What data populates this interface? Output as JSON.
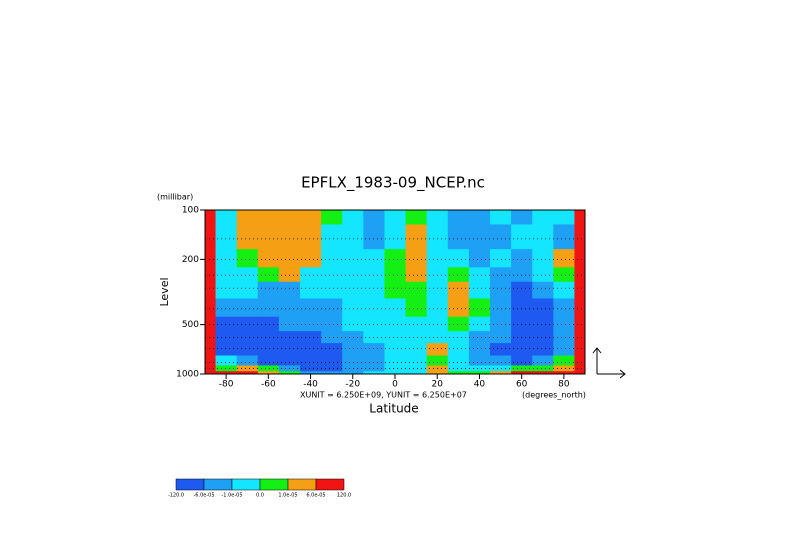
{
  "chart_data": {
    "type": "contour",
    "title": "EPFLX_1983-09_NCEP.nc",
    "y_unit": "(millibar)",
    "y_label": "Level",
    "x_label": "Latitude",
    "vector_scale": "XUNIT = 6.250E+09, YUNIT = 6.250E+07",
    "x_unit": "(degrees_north)",
    "xlim": [
      -90,
      90
    ],
    "xticks": [
      -80,
      -60,
      -40,
      -20,
      0,
      20,
      40,
      60,
      80
    ],
    "ylim": [
      1000,
      100
    ],
    "ylog": true,
    "yticks": [
      100,
      200,
      500,
      1000
    ],
    "x": [
      -90,
      -80,
      -70,
      -60,
      -50,
      -40,
      -30,
      -20,
      -10,
      0,
      10,
      20,
      30,
      40,
      50,
      60,
      70,
      80,
      90
    ],
    "levels": [
      100,
      150,
      200,
      250,
      300,
      400,
      500,
      600,
      700,
      850,
      925,
      1000
    ],
    "z": [
      [
        8e-05,
        -5e-06,
        3e-05,
        3e-05,
        3e-05,
        3e-05,
        5e-06,
        -5e-06,
        -3e-05,
        -5e-06,
        5e-06,
        -5e-06,
        -3e-05,
        -3e-05,
        -5e-06,
        -3e-05,
        -5e-06,
        -5e-06,
        8e-05
      ],
      [
        8e-05,
        -5e-06,
        3e-05,
        3e-05,
        3e-05,
        3e-05,
        -5e-06,
        -5e-06,
        -3e-05,
        -5e-06,
        3e-05,
        -5e-06,
        -3e-05,
        -3e-05,
        -3e-05,
        -5e-06,
        -5e-06,
        -3e-05,
        8e-05
      ],
      [
        8e-05,
        -5e-06,
        5e-06,
        3e-05,
        3e-05,
        3e-05,
        -5e-06,
        -5e-06,
        -5e-06,
        5e-06,
        3e-05,
        -5e-06,
        -5e-06,
        -3e-05,
        -5e-06,
        -3e-05,
        -5e-06,
        3e-05,
        8e-05
      ],
      [
        8e-05,
        -5e-06,
        -5e-06,
        5e-06,
        3e-05,
        -5e-06,
        -5e-06,
        -5e-06,
        -5e-06,
        5e-06,
        3e-05,
        -5e-06,
        5e-06,
        -5e-06,
        -3e-05,
        -3e-05,
        -5e-06,
        5e-06,
        8e-05
      ],
      [
        8e-05,
        -5e-06,
        -5e-06,
        -3e-05,
        -3e-05,
        -5e-06,
        -5e-06,
        -5e-06,
        -5e-06,
        5e-06,
        5e-06,
        -5e-06,
        3e-05,
        -5e-06,
        -3e-05,
        -8e-05,
        -3e-05,
        -5e-06,
        8e-05
      ],
      [
        8e-05,
        -3e-05,
        -3e-05,
        -3e-05,
        -3e-05,
        -3e-05,
        -3e-05,
        -5e-06,
        -5e-06,
        -5e-06,
        5e-06,
        -5e-06,
        3e-05,
        5e-06,
        -3e-05,
        -8e-05,
        -8e-05,
        -3e-05,
        8e-05
      ],
      [
        8e-05,
        -8e-05,
        -8e-05,
        -8e-05,
        -3e-05,
        -3e-05,
        -3e-05,
        -5e-06,
        -5e-06,
        -5e-06,
        -5e-06,
        -5e-06,
        5e-06,
        -5e-06,
        -3e-05,
        -8e-05,
        -8e-05,
        -3e-05,
        8e-05
      ],
      [
        8e-05,
        -8e-05,
        -8e-05,
        -8e-05,
        -8e-05,
        -8e-05,
        -3e-05,
        -3e-05,
        -5e-06,
        -5e-06,
        -5e-06,
        -5e-06,
        -5e-06,
        -3e-05,
        -3e-05,
        -8e-05,
        -8e-05,
        -3e-05,
        8e-05
      ],
      [
        8e-05,
        -8e-05,
        -8e-05,
        -8e-05,
        -8e-05,
        -8e-05,
        -8e-05,
        -3e-05,
        -3e-05,
        -5e-06,
        -5e-06,
        3e-05,
        -5e-06,
        -3e-05,
        -8e-05,
        -8e-05,
        -8e-05,
        -3e-05,
        8e-05
      ],
      [
        8e-05,
        -5e-06,
        -3e-05,
        -8e-05,
        -8e-05,
        -8e-05,
        -8e-05,
        -3e-05,
        -3e-05,
        -5e-06,
        -5e-06,
        5e-06,
        -5e-06,
        -3e-05,
        -3e-05,
        -8e-05,
        -3e-05,
        5e-06,
        8e-05
      ],
      [
        8e-05,
        5e-06,
        3e-05,
        5e-06,
        -3e-05,
        -8e-05,
        -8e-05,
        -3e-05,
        -3e-05,
        -5e-06,
        -5e-06,
        3e-05,
        -5e-06,
        -5e-06,
        -5e-06,
        5e-06,
        5e-06,
        3e-05,
        8e-05
      ],
      [
        8e-05,
        8e-05,
        8e-05,
        3e-05,
        5e-06,
        -3e-05,
        -3e-05,
        -3e-05,
        -5e-06,
        -5e-06,
        -5e-06,
        3e-05,
        5e-06,
        5e-06,
        3e-05,
        8e-05,
        8e-05,
        8e-05,
        8e-05
      ]
    ],
    "colorbar": {
      "levels": [
        {
          "value": -120,
          "label": "-120.0"
        },
        {
          "value": -6e-05,
          "label": "-6.0e-05"
        },
        {
          "value": -1e-05,
          "label": "-1.0e-05"
        },
        {
          "value": 0,
          "label": "0.0"
        },
        {
          "value": 1e-05,
          "label": "1.0e-05"
        },
        {
          "value": 6e-05,
          "label": "6.0e-05"
        },
        {
          "value": 120,
          "label": "120.0"
        }
      ],
      "colors": [
        "#1e5af0",
        "#1ea0f5",
        "#14e6ff",
        "#14f014",
        "#f5a014",
        "#f01414"
      ]
    }
  }
}
